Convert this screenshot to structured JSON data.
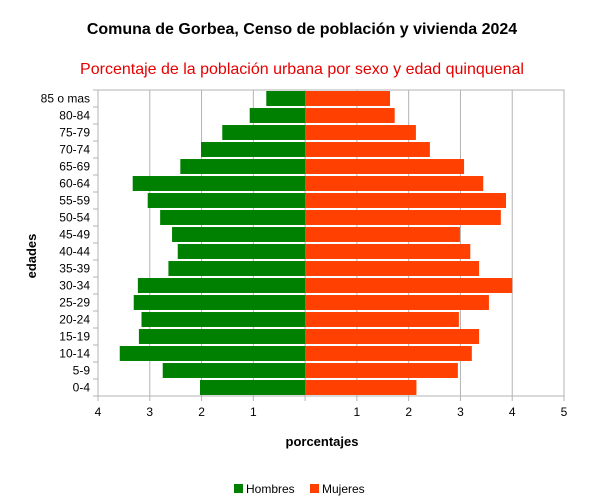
{
  "chart_data": {
    "type": "bar",
    "orientation": "horizontal",
    "title": "Comuna de Gorbea, Censo de población y vivienda 2024",
    "subtitle": "Porcentaje de la población urbana por sexo y edad quinquenal",
    "xlabel": "porcentajes",
    "ylabel": "edades",
    "xlim": [
      -4,
      5
    ],
    "x_ticks": [
      -4,
      -3,
      -2,
      -1,
      0,
      1,
      2,
      3,
      4,
      5
    ],
    "x_tick_labels": [
      "4",
      "3",
      "2",
      "1",
      "",
      "1",
      "2",
      "3",
      "4",
      "5"
    ],
    "grid": true,
    "legend_position": "bottom",
    "categories": [
      "0-4",
      "5-9",
      "10-14",
      "15-19",
      "20-24",
      "25-29",
      "30-34",
      "35-39",
      "40-44",
      "45-49",
      "50-54",
      "55-59",
      "60-64",
      "65-69",
      "70-74",
      "75-79",
      "80-84",
      "85 o mas"
    ],
    "series": [
      {
        "name": "Hombres",
        "color": "#008000",
        "values": [
          2.03,
          2.75,
          3.58,
          3.21,
          3.16,
          3.31,
          3.23,
          2.64,
          2.46,
          2.57,
          2.8,
          3.04,
          3.33,
          2.41,
          2.01,
          1.6,
          1.07,
          0.75
        ]
      },
      {
        "name": "Mujeres",
        "color": "#ff4000",
        "values": [
          2.15,
          2.95,
          3.22,
          3.36,
          2.97,
          3.55,
          4.0,
          3.36,
          3.19,
          2.99,
          3.78,
          3.88,
          3.44,
          3.07,
          2.41,
          2.14,
          1.73,
          1.64
        ]
      }
    ]
  }
}
